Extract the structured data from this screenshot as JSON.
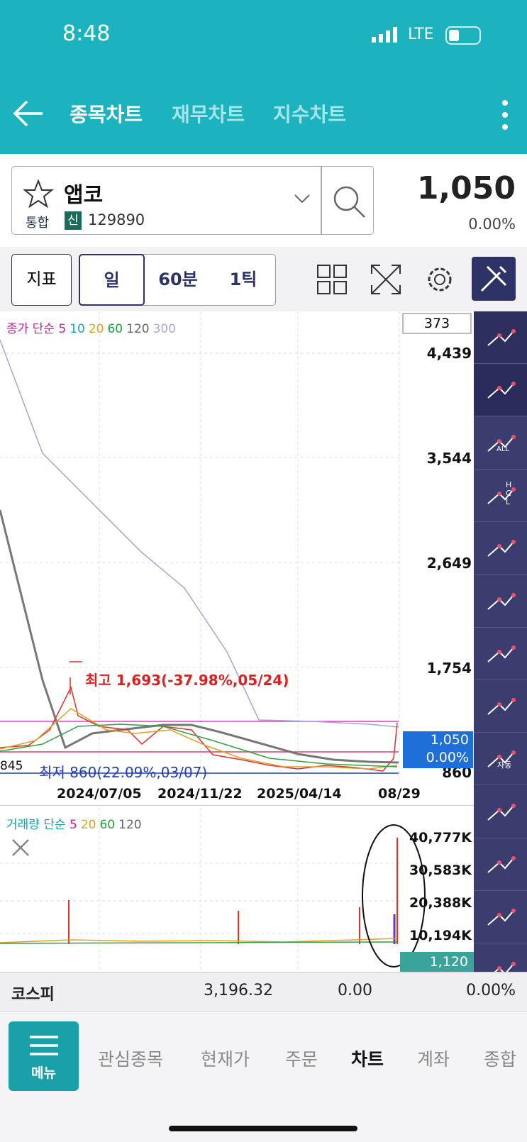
{
  "status_bar": {
    "time": "8:48",
    "network": "LTE"
  },
  "header": {
    "tabs": [
      "종목차트",
      "재무차트",
      "지수차트"
    ]
  },
  "stock": {
    "name": "앱코",
    "market": "통합",
    "badge": "신",
    "code": "129890",
    "price": "1,050",
    "change": "0.00%"
  },
  "toolbar": {
    "indicator": "지표",
    "periods": [
      "일",
      "60분",
      "1틱"
    ]
  },
  "price_chart": {
    "legend_label": "종가 단순",
    "ma": [
      "5",
      "10",
      "20",
      "60",
      "120",
      "300"
    ],
    "count": "373",
    "y_labels": [
      "4,439",
      "3,544",
      "2,649",
      "1,754",
      "860"
    ],
    "current_price": "1,050",
    "current_change": "0.00%",
    "high_annotation": "최고 1,693(-37.98%,05/24)",
    "low_annotation": "최저 860(22.09%,03/07)",
    "left_label": "845",
    "x_labels": [
      "2024/07/05",
      "2024/11/22",
      "2025/04/14",
      "08/29"
    ]
  },
  "side_tools": {
    "all": "ALL",
    "hcl": [
      "H",
      "C",
      "L"
    ],
    "auto": "자동"
  },
  "volume_chart": {
    "legend_label": "거래량 단순",
    "ma": [
      "5",
      "20",
      "60",
      "120"
    ],
    "y_labels": [
      "40,777K",
      "30,583K",
      "20,388K",
      "10,194K"
    ],
    "current_volume": "1,120"
  },
  "index_bar": {
    "name": "코스피",
    "value": "3,196.32",
    "change": "0.00",
    "rate": "0.00%"
  },
  "bottom_nav": {
    "menu": "메뉴",
    "items": [
      "관심종목",
      "현재가",
      "주문",
      "차트",
      "계좌",
      "종합"
    ]
  }
}
